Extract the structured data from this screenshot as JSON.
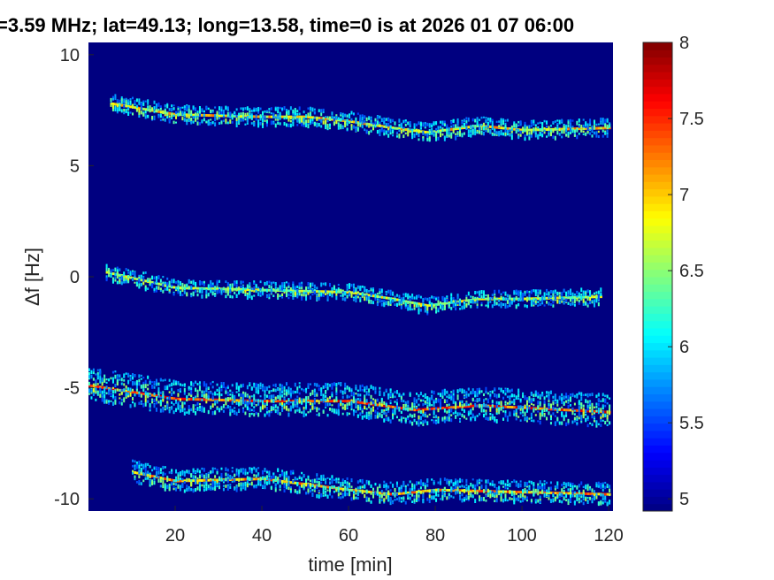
{
  "chart_data": {
    "type": "heatmap",
    "title": "=3.59 MHz;  lat=49.13; long=13.58, time=0 is at 2026 01 07 06:00",
    "xlabel": "time [min]",
    "ylabel": "Δf [Hz]",
    "xlim": [
      0,
      121
    ],
    "ylim": [
      -10.55,
      10.55
    ],
    "xticks": [
      20,
      40,
      60,
      80,
      100,
      120
    ],
    "yticks": [
      10,
      5,
      0,
      -5,
      -10
    ],
    "colorbar": {
      "clim": [
        4.92,
        8
      ],
      "ticks": [
        8,
        7.5,
        7,
        6.5,
        6,
        5.5,
        5
      ],
      "colormap": "jet"
    },
    "background_value": 4.92,
    "traces": [
      {
        "name": "trace-1",
        "t_start": 5,
        "t_end": 120,
        "peak": 7.3,
        "spread": 0.5,
        "points": [
          [
            5,
            7.8
          ],
          [
            20,
            7.3
          ],
          [
            30,
            7.25
          ],
          [
            40,
            7.2
          ],
          [
            50,
            7.2
          ],
          [
            60,
            7.0
          ],
          [
            70,
            6.7
          ],
          [
            78,
            6.5
          ],
          [
            90,
            6.8
          ],
          [
            100,
            6.6
          ],
          [
            120,
            6.7
          ]
        ]
      },
      {
        "name": "trace-2",
        "t_start": 4,
        "t_end": 118,
        "peak": 7.0,
        "spread": 0.45,
        "points": [
          [
            4,
            0.2
          ],
          [
            20,
            -0.5
          ],
          [
            40,
            -0.6
          ],
          [
            60,
            -0.7
          ],
          [
            70,
            -1.0
          ],
          [
            78,
            -1.3
          ],
          [
            90,
            -1.0
          ],
          [
            100,
            -1.0
          ],
          [
            118,
            -0.9
          ]
        ]
      },
      {
        "name": "trace-3",
        "t_start": 0,
        "t_end": 120,
        "peak": 7.8,
        "spread": 0.9,
        "points": [
          [
            0,
            -4.9
          ],
          [
            20,
            -5.5
          ],
          [
            40,
            -5.6
          ],
          [
            60,
            -5.6
          ],
          [
            75,
            -6.0
          ],
          [
            90,
            -5.8
          ],
          [
            100,
            -5.9
          ],
          [
            120,
            -6.1
          ]
        ]
      },
      {
        "name": "trace-4",
        "t_start": 10,
        "t_end": 120,
        "peak": 7.5,
        "spread": 0.6,
        "points": [
          [
            10,
            -8.8
          ],
          [
            20,
            -9.2
          ],
          [
            40,
            -9.1
          ],
          [
            60,
            -9.6
          ],
          [
            70,
            -9.8
          ],
          [
            80,
            -9.6
          ],
          [
            100,
            -9.7
          ],
          [
            120,
            -9.8
          ]
        ]
      }
    ]
  },
  "colors": {
    "background": "#00008f"
  }
}
